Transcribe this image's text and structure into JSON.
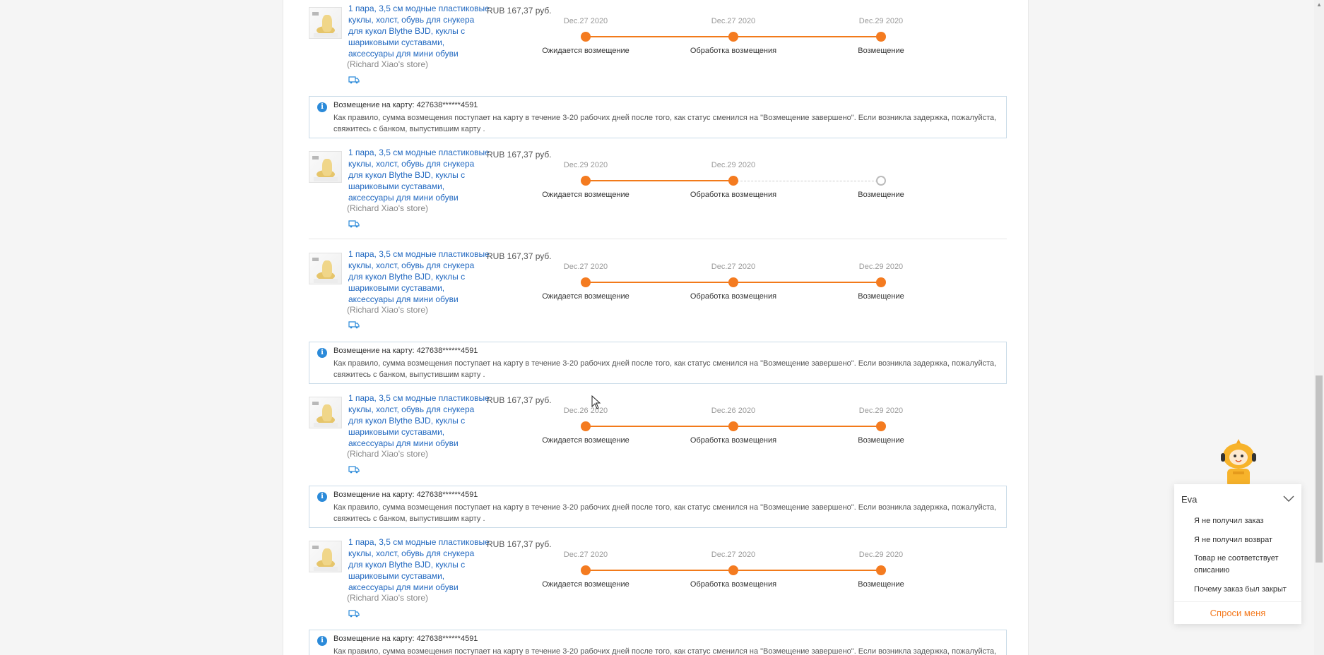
{
  "items": [
    {
      "title": "1 пара, 3,5 см модные пластиковые куклы, холст, обувь для снукера для кукол Blythe BJD, куклы с шариковыми суставами, аксессуары для мини обуви",
      "store": "(Richard Xiao's store)",
      "price": "RUB 167,37 руб.",
      "dates": [
        "Dec.27 2020",
        "Dec.27 2020",
        "Dec.29 2020"
      ],
      "labels": [
        "Ожидается возмещение",
        "Обработка возмещения",
        "Возмещение"
      ]
    },
    {
      "title": "1 пара, 3,5 см модные пластиковые куклы, холст, обувь для снукера для кукол Blythe BJD, куклы с шариковыми суставами, аксессуары для мини обуви",
      "store": "(Richard Xiao's store)",
      "price": "RUB 167,37 руб.",
      "dates": [
        "Dec.29 2020",
        "Dec.29 2020"
      ],
      "labels": [
        "Ожидается возмещение",
        "Обработка возмещения",
        "Возмещение"
      ]
    },
    {
      "title": "1 пара, 3,5 см модные пластиковые куклы, холст, обувь для снукера для кукол Blythe BJD, куклы с шариковыми суставами, аксессуары для мини обуви",
      "store": "(Richard Xiao's store)",
      "price": "RUB 167,37 руб.",
      "dates": [
        "Dec.27 2020",
        "Dec.27 2020",
        "Dec.29 2020"
      ],
      "labels": [
        "Ожидается возмещение",
        "Обработка возмещения",
        "Возмещение"
      ]
    },
    {
      "title": "1 пара, 3,5 см модные пластиковые куклы, холст, обувь для снукера для кукол Blythe BJD, куклы с шариковыми суставами, аксессуары для мини обуви",
      "store": "(Richard Xiao's store)",
      "price": "RUB 167,37 руб.",
      "dates": [
        "Dec.26 2020",
        "Dec.26 2020",
        "Dec.29 2020"
      ],
      "labels": [
        "Ожидается возмещение",
        "Обработка возмещения",
        "Возмещение"
      ]
    },
    {
      "title": "1 пара, 3,5 см модные пластиковые куклы, холст, обувь для снукера для кукол Blythe BJD, куклы с шариковыми суставами, аксессуары для мини обуви",
      "store": "(Richard Xiao's store)",
      "price": "RUB 167,37 руб.",
      "dates": [
        "Dec.27 2020",
        "Dec.27 2020",
        "Dec.29 2020"
      ],
      "labels": [
        "Ожидается возмещение",
        "Обработка возмещения",
        "Возмещение"
      ]
    }
  ],
  "notice": {
    "title": "Возмещение на карту: 427638******4591",
    "body": "Как правило, сумма возмещения поступает на карту в течение 3-20 рабочих дней после того, как статус сменился на \"Возмещение завершено\". Если возникла задержка, пожалуйста, свяжитесь с банком, выпустившим карту ."
  },
  "chat": {
    "name": "Eva",
    "options": [
      "Я не получил заказ",
      "Я не получил возврат",
      "Товар не соответствует описанию",
      "Почему заказ был закрыт"
    ],
    "ask_label": "Спроси меня"
  },
  "colors": {
    "accent": "#f47b20",
    "link": "#2168c0",
    "info": "#2b8ad9"
  }
}
